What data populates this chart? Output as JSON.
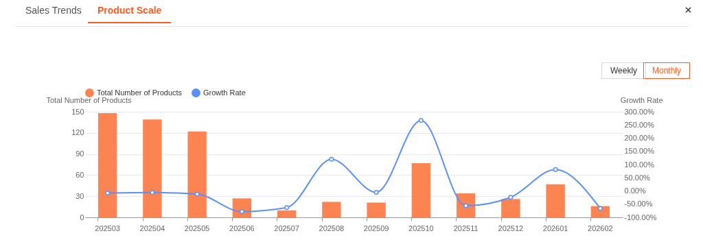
{
  "chart_data": {
    "type": "bar",
    "categories": [
      "202503",
      "202504",
      "202505",
      "202506",
      "202507",
      "202508",
      "202509",
      "202510",
      "202511",
      "202512",
      "202601",
      "202602"
    ],
    "series": [
      {
        "name": "Total Number of Products",
        "color": "#fc8452",
        "values": [
          148,
          139,
          122,
          27,
          10,
          22,
          21,
          77,
          34,
          26,
          47,
          16
        ]
      },
      {
        "name": "Growth Rate",
        "type": "line",
        "axis": "y2",
        "color": "#5b8ff9",
        "values": [
          -8,
          -6,
          -12,
          -78,
          -63,
          120,
          -5,
          267,
          -56,
          -24,
          81,
          -66
        ]
      }
    ],
    "ylabel": "Total Number of Products",
    "y2label": "Growth Rate",
    "ylim": [
      0,
      150
    ],
    "yticks": [
      0,
      30,
      60,
      90,
      120,
      150
    ],
    "y2lim": [
      -100,
      300
    ],
    "y2ticks": [
      {
        "value": -100,
        "label": "-100.00%"
      },
      {
        "value": -50,
        "label": "-50.00%"
      },
      {
        "value": 0,
        "label": "0.00%"
      },
      {
        "value": 50,
        "label": "50.00%"
      },
      {
        "value": 100,
        "label": "100.00%"
      },
      {
        "value": 150,
        "label": "150.00%"
      },
      {
        "value": 200,
        "label": "200.00%"
      },
      {
        "value": 250,
        "label": "250.00%"
      },
      {
        "value": 300,
        "label": "300.00%"
      }
    ],
    "grid": "y",
    "legend": "top",
    "marker": "circle",
    "line_style": "solid",
    "annotations": [
      "Sales Trends",
      "Product Scale",
      "Weekly",
      "Monthly"
    ]
  }
}
